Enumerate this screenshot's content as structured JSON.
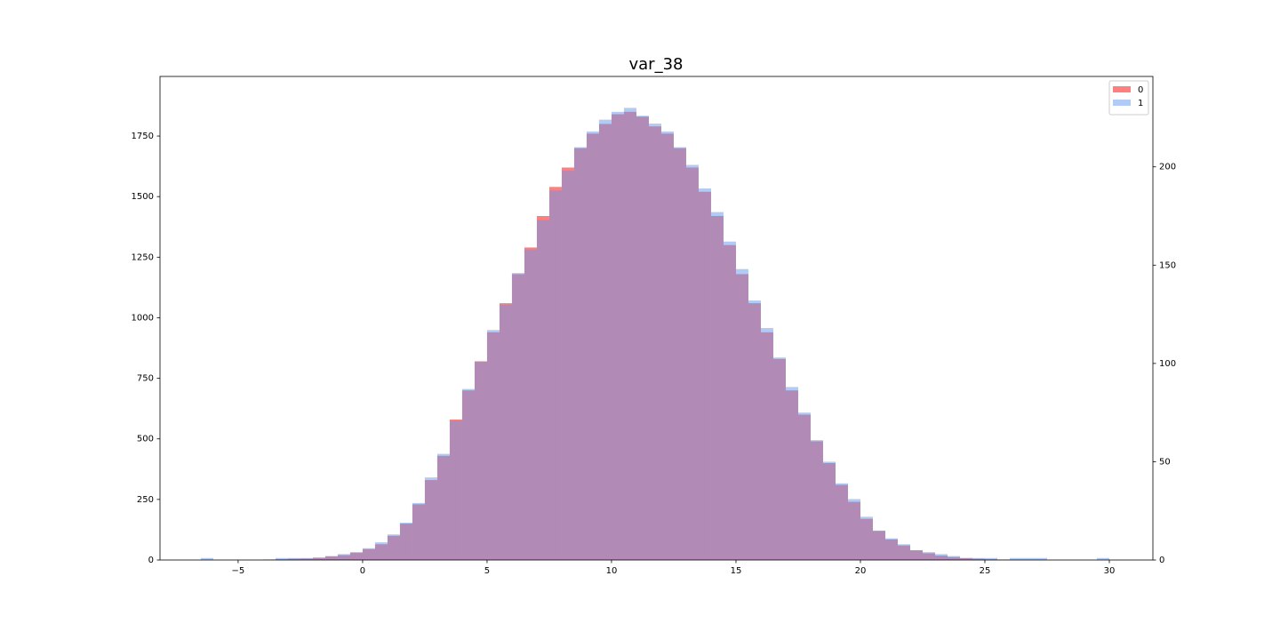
{
  "chart_data": {
    "type": "histogram",
    "title": "var_38",
    "bins": [
      -6.5,
      -6,
      -5.5,
      -5,
      -4.5,
      -4,
      -3.5,
      -3,
      -2.5,
      -2,
      -1.5,
      -1,
      -0.5,
      0,
      0.5,
      1,
      1.5,
      2,
      2.5,
      3,
      3.5,
      4,
      4.5,
      5,
      5.5,
      6,
      6.5,
      7,
      7.5,
      8,
      8.5,
      9,
      9.5,
      10,
      10.5,
      11,
      11.5,
      12,
      12.5,
      13,
      13.5,
      14,
      14.5,
      15,
      15.5,
      16,
      16.5,
      17,
      17.5,
      18,
      18.5,
      19,
      19.5,
      20,
      20.5,
      21,
      21.5,
      22,
      22.5,
      23,
      23.5,
      24,
      24.5,
      25,
      25.5,
      26,
      26.5,
      27,
      27.5,
      28,
      28.5,
      29,
      29.5,
      30
    ],
    "series": [
      {
        "name": "0",
        "color": "#ff0000",
        "axis": "y",
        "values": [
          0,
          0,
          0,
          0,
          0,
          2,
          3,
          5,
          6,
          10,
          15,
          20,
          30,
          45,
          65,
          100,
          150,
          230,
          330,
          430,
          580,
          700,
          820,
          940,
          1060,
          1180,
          1290,
          1420,
          1540,
          1620,
          1700,
          1760,
          1800,
          1840,
          1850,
          1830,
          1790,
          1760,
          1700,
          1620,
          1520,
          1420,
          1300,
          1180,
          1060,
          940,
          830,
          700,
          600,
          490,
          400,
          310,
          240,
          170,
          120,
          85,
          60,
          40,
          28,
          18,
          12,
          8,
          5,
          3,
          2,
          1,
          1,
          1,
          0,
          0,
          0,
          0,
          0
        ]
      },
      {
        "name": "1",
        "color": "#6495ed",
        "axis": "y2",
        "values": [
          1,
          0,
          0,
          0,
          0,
          0,
          1,
          1,
          1,
          1,
          2,
          3,
          4,
          6,
          9,
          13,
          19,
          29,
          42,
          54,
          71,
          87,
          101,
          117,
          130,
          146,
          158,
          173,
          188,
          198,
          210,
          218,
          224,
          228,
          230,
          226,
          222,
          218,
          210,
          201,
          189,
          177,
          162,
          148,
          132,
          118,
          103,
          88,
          75,
          61,
          50,
          39,
          31,
          22,
          15,
          11,
          8,
          5,
          4,
          3,
          2,
          1,
          1,
          1,
          0,
          1,
          1,
          1,
          0,
          0,
          0,
          0,
          1
        ]
      }
    ],
    "opacity": 0.5,
    "xlim": [
      -8.14,
      31.75
    ],
    "xticks": [
      {
        "value": -5,
        "label": "−5"
      },
      0,
      5,
      10,
      15,
      20,
      25,
      30
    ],
    "ylim": [
      0,
      1996
    ],
    "yticks": [
      0,
      250,
      500,
      750,
      1000,
      1250,
      1500,
      1750
    ],
    "y2lim": [
      0,
      246
    ],
    "y2ticks": [
      0,
      50,
      100,
      150,
      200
    ],
    "legend": "upper right"
  }
}
